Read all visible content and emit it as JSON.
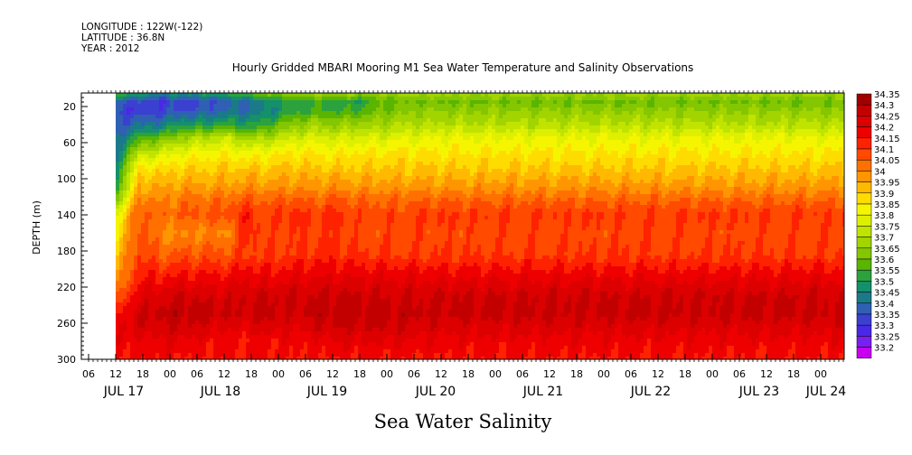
{
  "header": {
    "longitude": "LONGITUDE : 122W(-122)",
    "latitude": "LATITUDE : 36.8N",
    "year": "YEAR : 2012"
  },
  "chart_data": {
    "type": "heatmap",
    "title": "Hourly Gridded MBARI Mooring M1 Sea Water Temperature and Salinity Observations",
    "xlabel": "",
    "ylabel": "DEPTH (m)",
    "variable_label": "Sea Water Salinity",
    "y_ticks": [
      20,
      60,
      100,
      140,
      180,
      220,
      260,
      300
    ],
    "ylim": [
      300,
      5
    ],
    "x_hour_ticks": [
      "06",
      "12",
      "18",
      "00",
      "06",
      "12",
      "18",
      "00",
      "06",
      "12",
      "18",
      "00",
      "06",
      "12",
      "18",
      "00",
      "06",
      "12",
      "18",
      "00",
      "06",
      "12",
      "18",
      "00",
      "06",
      "12",
      "18",
      "00",
      "06",
      "12",
      "18",
      "00"
    ],
    "x_day_labels": [
      "JUL 17",
      "JUL 18",
      "JUL 19",
      "JUL 20",
      "JUL 21",
      "JUL 22",
      "JUL 23",
      "JUL 24"
    ],
    "data_start": "JUL 17 12:00",
    "colorbar": {
      "levels": [
        "34.35",
        "34.3",
        "34.25",
        "34.2",
        "34.15",
        "34.1",
        "34.05",
        "34",
        "33.95",
        "33.9",
        "33.85",
        "33.8",
        "33.75",
        "33.7",
        "33.65",
        "33.6",
        "33.55",
        "33.5",
        "33.45",
        "33.4",
        "33.35",
        "33.3",
        "33.25",
        "33.2"
      ],
      "colors": [
        "#a00000",
        "#c30000",
        "#dc0000",
        "#ee0000",
        "#ff2200",
        "#ff4a00",
        "#ff7000",
        "#ff9500",
        "#ffb900",
        "#ffdc00",
        "#f6f500",
        "#def000",
        "#c0e400",
        "#a2d400",
        "#84c600",
        "#5ab500",
        "#2ba23e",
        "#14906a",
        "#1a7a8a",
        "#2f60b4",
        "#3a40cf",
        "#4a28e6",
        "#7a1ff2",
        "#c800f0"
      ],
      "level_axis": [
        34.35,
        34.3,
        34.25,
        34.2,
        34.15,
        34.1,
        34.05,
        34.0,
        33.95,
        33.9,
        33.85,
        33.8,
        33.75,
        33.7,
        33.65,
        33.6,
        33.55,
        33.5,
        33.45,
        33.4,
        33.35,
        33.3,
        33.25,
        33.2
      ]
    },
    "salinity_profile": {
      "depth": [
        5,
        15,
        25,
        40,
        55,
        70,
        90,
        110,
        125,
        140,
        160,
        185,
        210,
        230,
        250,
        265,
        280,
        300
      ],
      "time_days": [
        0.0,
        0.5,
        1.0,
        1.5,
        2.0,
        2.5,
        3.0,
        3.5,
        4.0,
        4.5,
        5.0,
        5.5,
        6.0,
        6.5,
        7.0,
        7.5
      ],
      "values": [
        [
          33.62,
          33.42,
          33.38,
          33.4,
          33.45,
          33.5,
          33.55,
          33.6,
          33.7,
          33.85,
          33.9,
          33.95,
          34.0,
          34.1,
          34.2,
          34.25,
          34.25,
          34.2
        ],
        [
          33.55,
          33.38,
          33.36,
          33.45,
          33.6,
          33.75,
          33.92,
          34.0,
          34.07,
          34.12,
          34.12,
          34.15,
          34.2,
          34.25,
          34.3,
          34.27,
          34.22,
          34.2
        ],
        [
          33.5,
          33.36,
          33.38,
          33.48,
          33.65,
          33.8,
          33.93,
          34.0,
          34.05,
          34.08,
          34.05,
          34.1,
          34.2,
          34.28,
          34.32,
          34.28,
          34.25,
          34.22
        ],
        [
          33.52,
          33.38,
          33.4,
          33.55,
          33.72,
          33.85,
          33.94,
          34.02,
          34.08,
          34.1,
          34.03,
          34.12,
          34.22,
          34.3,
          34.33,
          34.3,
          34.25,
          34.2
        ],
        [
          33.55,
          33.4,
          33.42,
          33.55,
          33.75,
          33.86,
          33.95,
          34.02,
          34.08,
          34.12,
          34.05,
          34.12,
          34.22,
          34.28,
          34.32,
          34.28,
          34.22,
          34.2
        ],
        [
          33.58,
          33.42,
          33.45,
          33.58,
          33.78,
          33.88,
          33.96,
          34.02,
          34.09,
          34.12,
          34.04,
          34.12,
          34.22,
          34.28,
          34.3,
          34.25,
          34.22,
          34.2
        ],
        [
          33.62,
          33.45,
          33.45,
          33.55,
          33.72,
          33.85,
          33.96,
          34.04,
          34.12,
          34.18,
          34.18,
          34.15,
          34.25,
          34.3,
          34.3,
          34.25,
          34.2,
          34.2
        ],
        [
          33.68,
          33.52,
          33.5,
          33.6,
          33.75,
          33.88,
          33.96,
          34.03,
          34.1,
          34.13,
          34.12,
          34.15,
          34.22,
          34.3,
          34.32,
          34.28,
          34.22,
          34.2
        ],
        [
          33.68,
          33.58,
          33.58,
          33.68,
          33.8,
          33.9,
          33.97,
          34.04,
          34.12,
          34.18,
          34.15,
          34.15,
          34.25,
          34.3,
          34.28,
          34.25,
          34.22,
          34.2
        ],
        [
          33.72,
          33.58,
          33.6,
          33.72,
          33.82,
          33.9,
          33.96,
          34.03,
          34.1,
          34.14,
          34.13,
          34.17,
          34.25,
          34.3,
          34.32,
          34.28,
          34.22,
          34.2
        ],
        [
          33.72,
          33.58,
          33.6,
          33.7,
          33.8,
          33.88,
          33.96,
          34.04,
          34.12,
          34.17,
          34.15,
          34.18,
          34.25,
          34.32,
          34.33,
          34.3,
          34.25,
          34.2
        ],
        [
          33.7,
          33.56,
          33.6,
          33.72,
          33.82,
          33.9,
          33.96,
          34.03,
          34.1,
          34.13,
          34.12,
          34.16,
          34.25,
          34.3,
          34.33,
          34.3,
          34.25,
          34.2
        ],
        [
          33.7,
          33.62,
          33.65,
          33.72,
          33.82,
          33.9,
          33.96,
          34.03,
          34.1,
          34.13,
          34.12,
          34.15,
          34.25,
          34.3,
          34.32,
          34.3,
          34.25,
          34.2
        ],
        [
          33.72,
          33.65,
          33.68,
          33.75,
          33.84,
          33.91,
          33.96,
          34.03,
          34.1,
          34.13,
          34.13,
          34.15,
          34.25,
          34.3,
          34.32,
          34.3,
          34.25,
          34.2
        ],
        [
          33.72,
          33.65,
          33.7,
          33.75,
          33.84,
          33.9,
          33.96,
          34.03,
          34.1,
          34.15,
          34.13,
          34.15,
          34.24,
          34.3,
          34.32,
          34.28,
          34.24,
          34.2
        ],
        [
          33.72,
          33.65,
          33.7,
          33.76,
          33.85,
          33.9,
          33.96,
          34.03,
          34.1,
          34.15,
          34.13,
          34.15,
          34.24,
          34.3,
          34.31,
          34.27,
          34.23,
          34.2
        ]
      ]
    }
  }
}
